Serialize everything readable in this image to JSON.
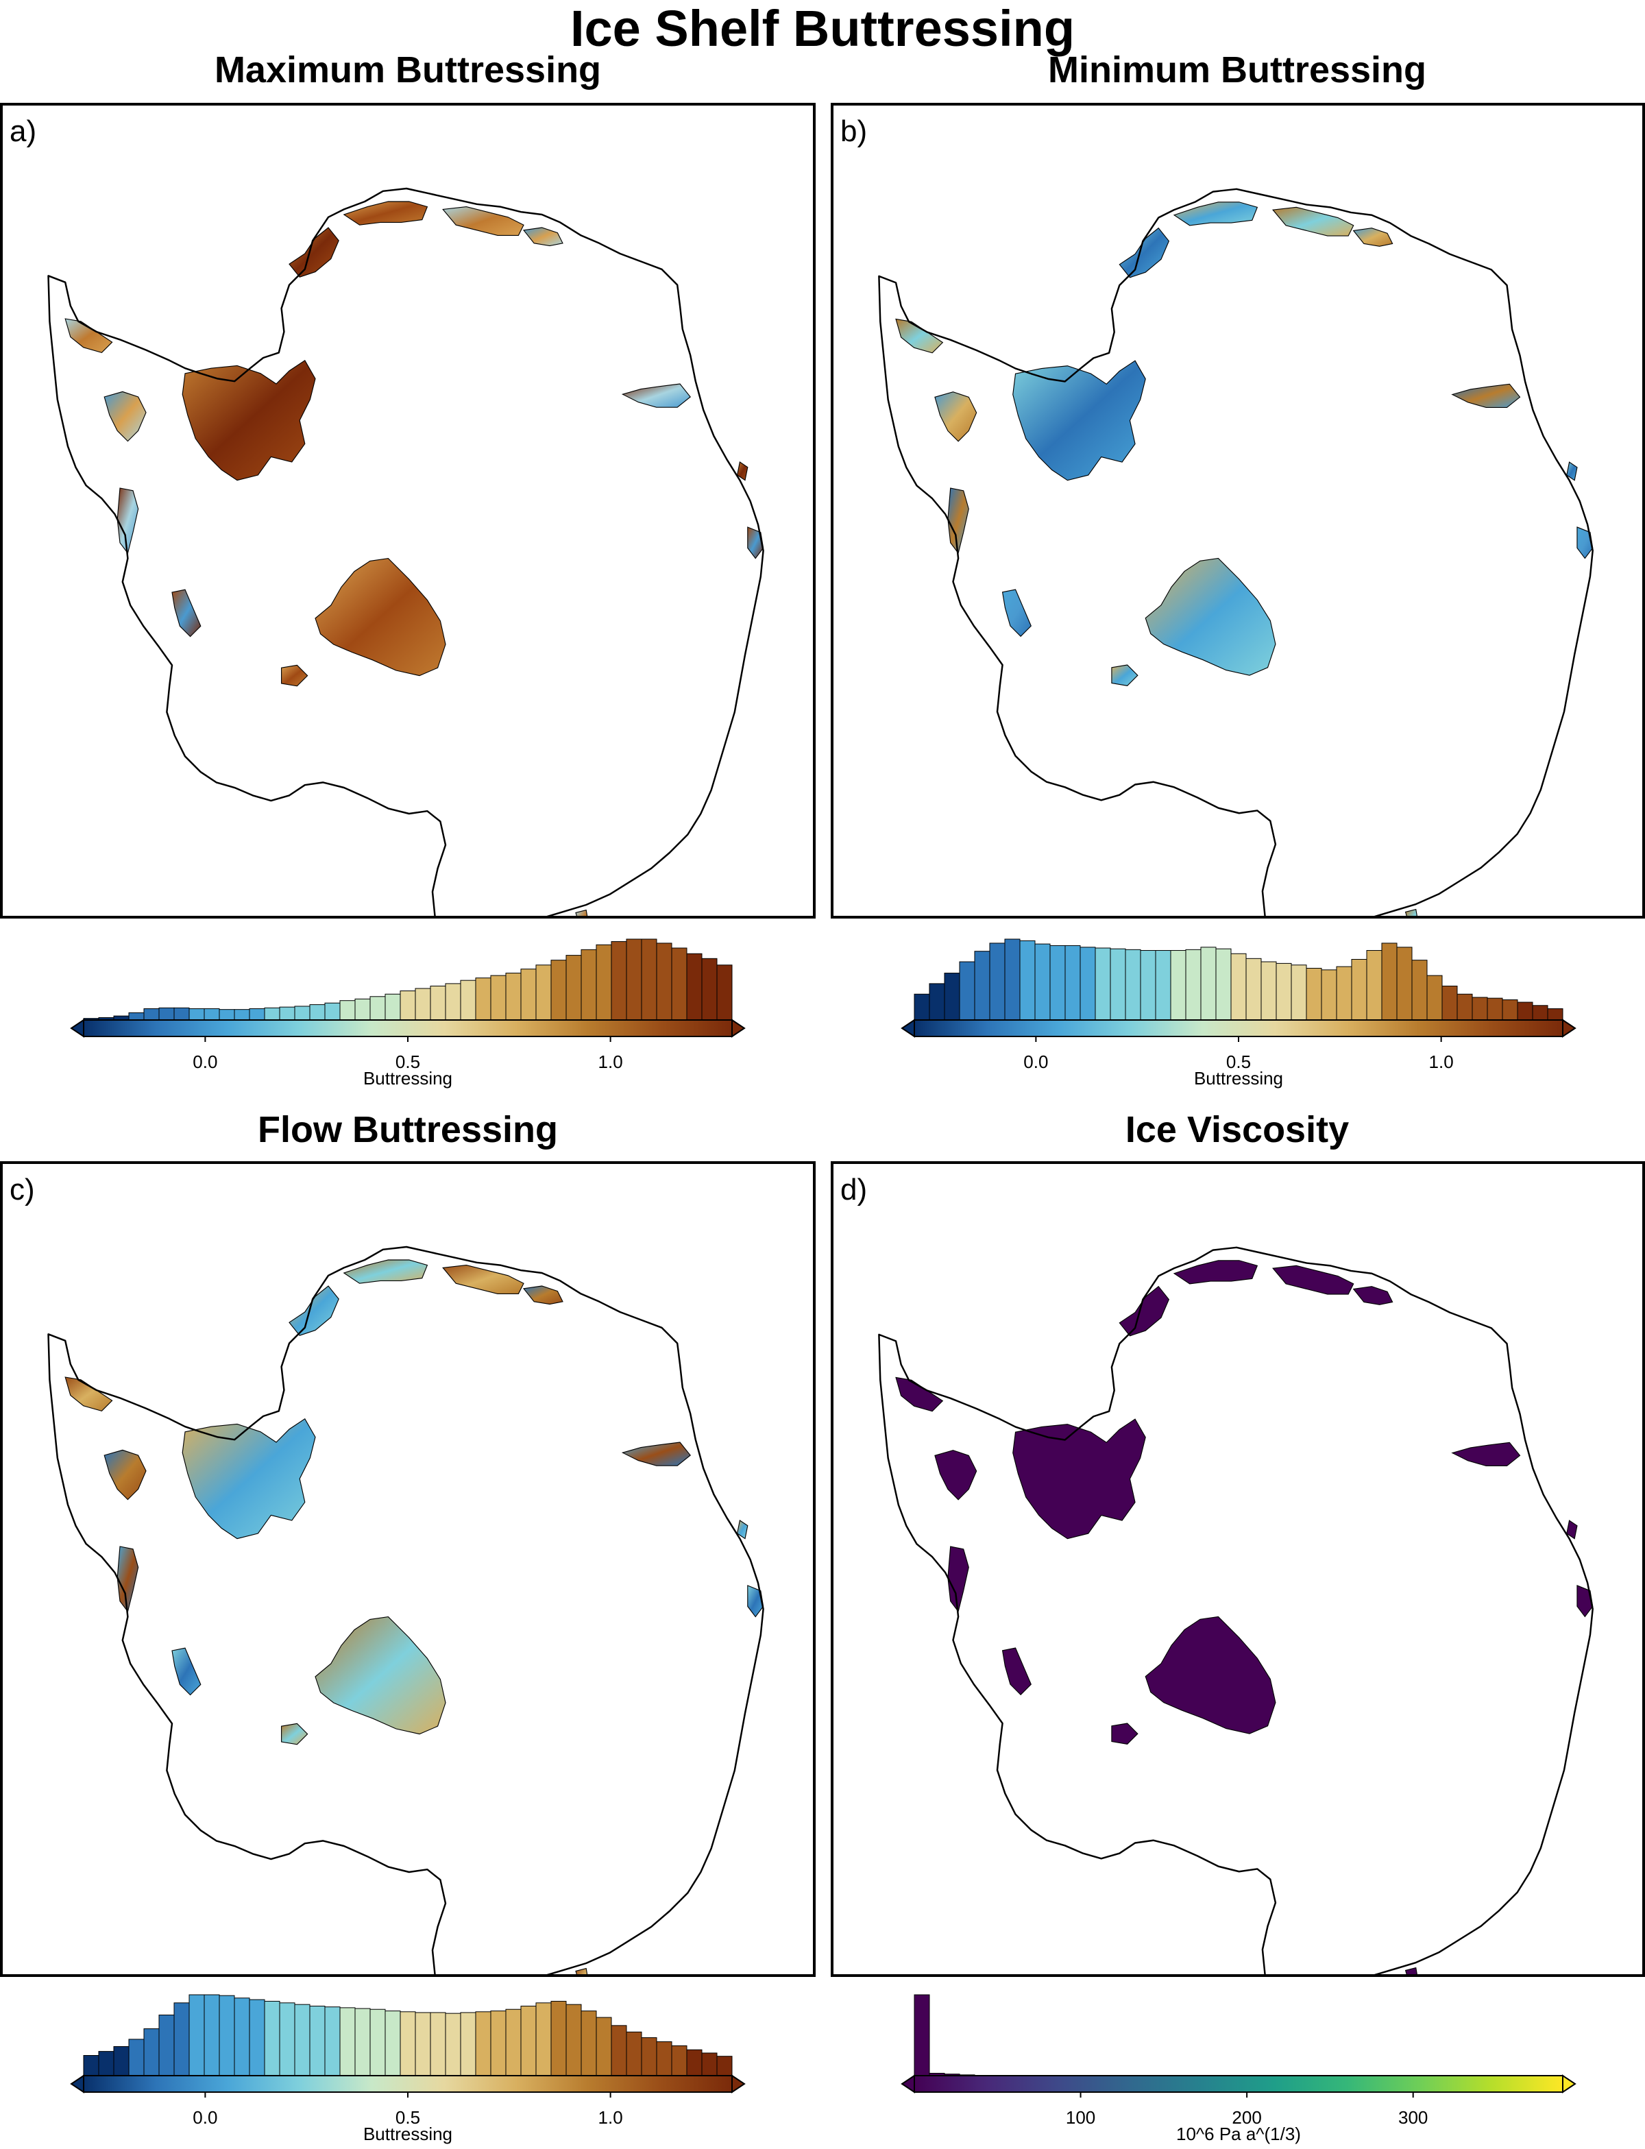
{
  "title": "Ice Shelf Buttressing",
  "panels": [
    {
      "letter": "a)",
      "title": "Maximum Buttressing",
      "fill_palette": [
        "#7a2a0a",
        "#a04a14",
        "#c07a30",
        "#d8a050",
        "#a8d4e0",
        "#4a9ad0"
      ],
      "colorbar": {
        "label": "Buttressing",
        "ticks": [
          "0.0",
          "0.5",
          "1.0"
        ],
        "tick_values": [
          0.0,
          0.5,
          1.0
        ],
        "range": [
          -0.3,
          1.3
        ],
        "colors": [
          "#08306b",
          "#2d74b7",
          "#4aa6d8",
          "#7fd0dc",
          "#c8e8c8",
          "#e6d8a0",
          "#d8b060",
          "#b87c2e",
          "#9a4e18",
          "#7a2a0a"
        ],
        "histogram": [
          0.02,
          0.03,
          0.05,
          0.09,
          0.14,
          0.15,
          0.15,
          0.14,
          0.14,
          0.13,
          0.13,
          0.14,
          0.15,
          0.16,
          0.17,
          0.19,
          0.21,
          0.24,
          0.26,
          0.29,
          0.32,
          0.36,
          0.39,
          0.42,
          0.45,
          0.49,
          0.52,
          0.55,
          0.58,
          0.63,
          0.68,
          0.74,
          0.8,
          0.87,
          0.93,
          0.97,
          1.0,
          1.0,
          0.95,
          0.89,
          0.82,
          0.76,
          0.68
        ]
      }
    },
    {
      "letter": "b)",
      "title": "Minimum Buttressing",
      "fill_palette": [
        "#2d74b7",
        "#4aa6d8",
        "#7fd0dc",
        "#d8b060",
        "#b87c2e",
        "#4a9ad0"
      ],
      "colorbar": {
        "label": "Buttressing",
        "ticks": [
          "0.0",
          "0.5",
          "1.0"
        ],
        "tick_values": [
          0.0,
          0.5,
          1.0
        ],
        "range": [
          -0.3,
          1.3
        ],
        "colors": [
          "#08306b",
          "#2d74b7",
          "#4aa6d8",
          "#7fd0dc",
          "#c8e8c8",
          "#e6d8a0",
          "#d8b060",
          "#b87c2e",
          "#9a4e18",
          "#7a2a0a"
        ],
        "histogram": [
          0.32,
          0.45,
          0.58,
          0.72,
          0.85,
          0.95,
          1.0,
          0.98,
          0.94,
          0.92,
          0.92,
          0.9,
          0.89,
          0.88,
          0.87,
          0.86,
          0.86,
          0.86,
          0.87,
          0.9,
          0.88,
          0.82,
          0.76,
          0.72,
          0.7,
          0.68,
          0.64,
          0.62,
          0.66,
          0.75,
          0.86,
          0.95,
          0.9,
          0.74,
          0.55,
          0.42,
          0.32,
          0.28,
          0.27,
          0.25,
          0.22,
          0.18,
          0.14
        ]
      }
    },
    {
      "letter": "c)",
      "title": "Flow Buttressing",
      "fill_palette": [
        "#4aa6d8",
        "#7fd0dc",
        "#d8b060",
        "#b87c2e",
        "#9a4e18",
        "#2d74b7"
      ],
      "colorbar": {
        "label": "Buttressing",
        "ticks": [
          "0.0",
          "0.5",
          "1.0"
        ],
        "tick_values": [
          0.0,
          0.5,
          1.0
        ],
        "range": [
          -0.3,
          1.3
        ],
        "colors": [
          "#08306b",
          "#2d74b7",
          "#4aa6d8",
          "#7fd0dc",
          "#c8e8c8",
          "#e6d8a0",
          "#d8b060",
          "#b87c2e",
          "#9a4e18",
          "#7a2a0a"
        ],
        "histogram": [
          0.25,
          0.3,
          0.36,
          0.45,
          0.58,
          0.75,
          0.9,
          1.0,
          1.0,
          0.99,
          0.96,
          0.94,
          0.92,
          0.9,
          0.88,
          0.86,
          0.85,
          0.84,
          0.83,
          0.82,
          0.8,
          0.79,
          0.78,
          0.78,
          0.77,
          0.78,
          0.79,
          0.8,
          0.82,
          0.86,
          0.9,
          0.92,
          0.88,
          0.8,
          0.72,
          0.62,
          0.54,
          0.47,
          0.42,
          0.37,
          0.32,
          0.28,
          0.24
        ]
      }
    },
    {
      "letter": "d)",
      "title": "Ice Viscosity",
      "fill_palette": [
        "#440154",
        "#440154",
        "#440154",
        "#440154",
        "#440154",
        "#440154"
      ],
      "colorbar": {
        "label": "10^6 Pa a^(1/3)",
        "ticks": [
          "100",
          "200",
          "300"
        ],
        "tick_values": [
          100,
          200,
          300
        ],
        "range": [
          0,
          390
        ],
        "colors": [
          "#440154",
          "#482878",
          "#3e4989",
          "#31688e",
          "#26828e",
          "#1f9e89",
          "#35b779",
          "#6ece58",
          "#b5de2b",
          "#fde725"
        ],
        "histogram": [
          1.0,
          0.03,
          0.02,
          0.01,
          0.0,
          0.0,
          0.0,
          0.0,
          0.0,
          0.0,
          0.0,
          0.0,
          0.0,
          0.0,
          0.0,
          0.0,
          0.0,
          0.0,
          0.0,
          0.0,
          0.0,
          0.0,
          0.0,
          0.0,
          0.0,
          0.0,
          0.0,
          0.0,
          0.0,
          0.0,
          0.0,
          0.0,
          0.0,
          0.0,
          0.0,
          0.0,
          0.0,
          0.0,
          0.0,
          0.0,
          0.0,
          0.0,
          0.0
        ]
      }
    }
  ]
}
